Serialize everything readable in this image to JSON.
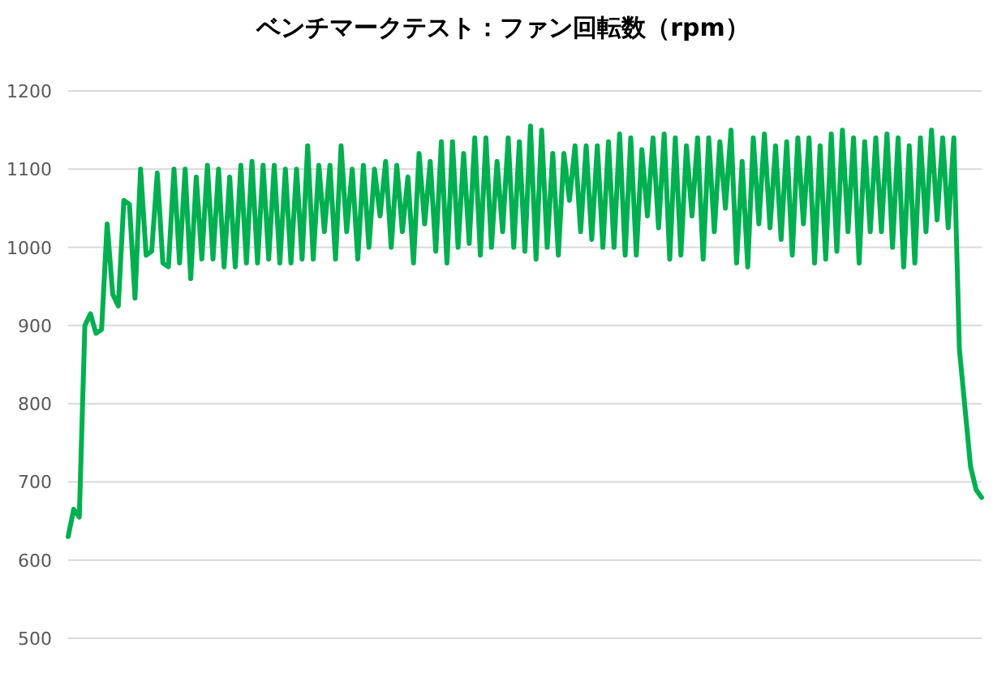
{
  "chart_data": {
    "type": "line",
    "title": "ベンチマークテスト：ファン回転数（rpm）",
    "categories": [
      null,
      null,
      null,
      null,
      null,
      null,
      null,
      null,
      null,
      null,
      null,
      null,
      null,
      null,
      null,
      null,
      null,
      null,
      null,
      null,
      null,
      null,
      null,
      null,
      null,
      null,
      null,
      null,
      null,
      null,
      null,
      null,
      null,
      null,
      null,
      null,
      null,
      null,
      null,
      null,
      null,
      null,
      null,
      null,
      null,
      null,
      null,
      null,
      null,
      null,
      null,
      null,
      null,
      null,
      null,
      null,
      null,
      null,
      null,
      null,
      null,
      null,
      null,
      null,
      null,
      null,
      null,
      null,
      null,
      null,
      null,
      null,
      null,
      null,
      null,
      null,
      null,
      null,
      null,
      null,
      null,
      null,
      null,
      null,
      null,
      null,
      null,
      null,
      null,
      null,
      null,
      null,
      null,
      null,
      null,
      null,
      null,
      null,
      null,
      null,
      null,
      null,
      null,
      null,
      null,
      null,
      null,
      null,
      null,
      null,
      null,
      null,
      null,
      null,
      null,
      null,
      null,
      null,
      null,
      null,
      null,
      null,
      null,
      null,
      null,
      null,
      null,
      null,
      null,
      null,
      null,
      null,
      null,
      null,
      null,
      null,
      null,
      null,
      null,
      null,
      null,
      null,
      null,
      null,
      null,
      null,
      null,
      null,
      null,
      null,
      null,
      null,
      null,
      null,
      null,
      null,
      null,
      null,
      null,
      null,
      null,
      null,
      null,
      null,
      null
    ],
    "series": [
      {
        "color": "#00b050",
        "values": [
          630,
          665,
          655,
          900,
          915,
          890,
          895,
          1030,
          940,
          925,
          1060,
          1055,
          935,
          1100,
          990,
          995,
          1095,
          980,
          975,
          1100,
          980,
          1100,
          960,
          1090,
          985,
          1105,
          985,
          1100,
          975,
          1090,
          975,
          1105,
          980,
          1110,
          980,
          1105,
          985,
          1105,
          980,
          1100,
          980,
          1100,
          985,
          1130,
          985,
          1105,
          1020,
          1105,
          985,
          1130,
          1020,
          1100,
          985,
          1105,
          1000,
          1100,
          1040,
          1110,
          1000,
          1105,
          1020,
          1090,
          980,
          1120,
          1030,
          1110,
          995,
          1135,
          980,
          1135,
          1000,
          1120,
          1005,
          1140,
          990,
          1140,
          1000,
          1110,
          1020,
          1140,
          1000,
          1135,
          995,
          1155,
          985,
          1150,
          1000,
          1120,
          990,
          1120,
          1060,
          1130,
          1020,
          1130,
          1010,
          1130,
          1000,
          1135,
          1000,
          1145,
          990,
          1140,
          990,
          1125,
          1040,
          1140,
          1025,
          1145,
          985,
          1140,
          990,
          1130,
          1040,
          1140,
          985,
          1140,
          1020,
          1135,
          1050,
          1150,
          980,
          1110,
          975,
          1140,
          1030,
          1145,
          1025,
          1130,
          1010,
          1135,
          990,
          1140,
          1030,
          1140,
          980,
          1130,
          985,
          1145,
          995,
          1150,
          1020,
          1140,
          980,
          1135,
          1020,
          1140,
          1020,
          1145,
          1000,
          1140,
          975,
          1130,
          980,
          1140,
          1020,
          1150,
          1035,
          1140,
          1025,
          1140,
          870,
          795,
          720,
          690,
          680
        ]
      }
    ],
    "ylim": [
      500,
      1200
    ],
    "yticks": [
      500,
      600,
      700,
      800,
      900,
      1000,
      1100,
      1200
    ],
    "grid": "y",
    "tick_labels": "y",
    "marker": "none",
    "line_style": "solid"
  }
}
